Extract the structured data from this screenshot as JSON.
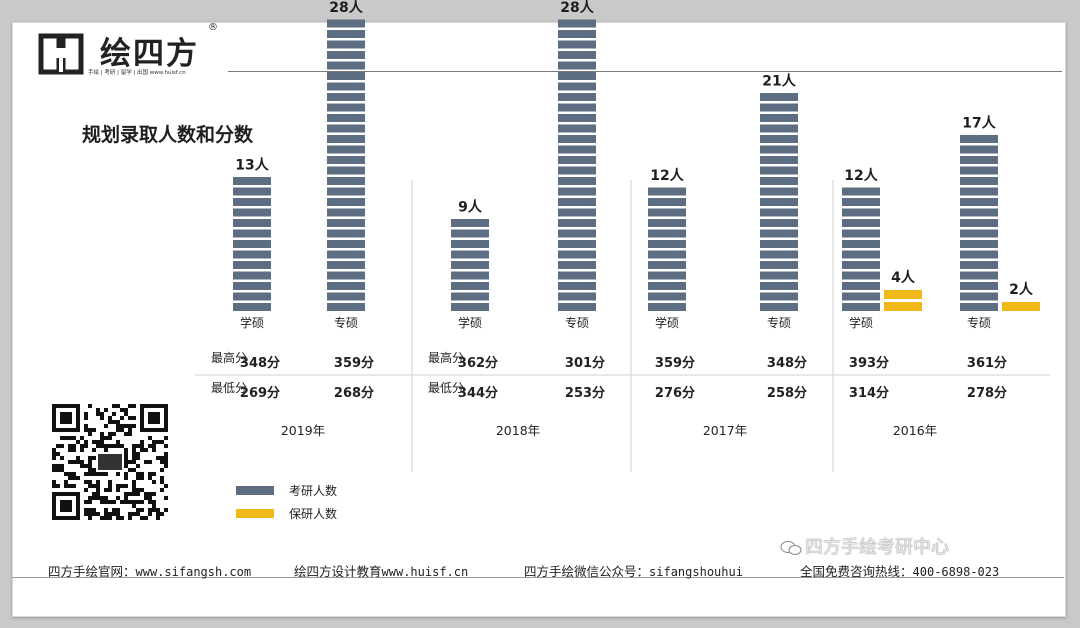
{
  "header": {
    "brand": "绘四方",
    "registered": "®",
    "tagline": "手绘 | 考研 | 留学 | 出国  www.huisf.cn"
  },
  "chart_data": {
    "type": "bar",
    "title": "规划录取人数和分数",
    "legend": [
      {
        "name": "考研人数",
        "color": "#5d6e82"
      },
      {
        "name": "保研人数",
        "color": "#f0b818"
      }
    ],
    "row_labels": {
      "max": "最高分",
      "min": "最低分"
    },
    "groups": [
      {
        "year": "2019年",
        "categories": [
          {
            "name": "学硕",
            "kaoyan": 13,
            "label": "13人",
            "max_score": "348分",
            "min_score": "269分"
          },
          {
            "name": "专硕",
            "kaoyan": 28,
            "label": "28人",
            "max_score": "359分",
            "min_score": "268分"
          }
        ]
      },
      {
        "year": "2018年",
        "categories": [
          {
            "name": "学硕",
            "kaoyan": 9,
            "label": "9人",
            "max_score": "362分",
            "min_score": "344分"
          },
          {
            "name": "专硕",
            "kaoyan": 28,
            "label": "28人",
            "max_score": "301分",
            "min_score": "253分"
          }
        ]
      },
      {
        "year": "2017年",
        "categories": [
          {
            "name": "学硕",
            "kaoyan": 12,
            "label": "12人",
            "max_score": "359分",
            "min_score": "276分"
          },
          {
            "name": "专硕",
            "kaoyan": 21,
            "label": "21人",
            "max_score": "348分",
            "min_score": "258分"
          }
        ]
      },
      {
        "year": "2016年",
        "categories": [
          {
            "name": "学硕",
            "kaoyan": 12,
            "label": "12人",
            "baoyan": 4,
            "baoyan_label": "4人",
            "max_score": "393分",
            "min_score": "314分"
          },
          {
            "name": "专硕",
            "kaoyan": 17,
            "label": "17人",
            "baoyan": 2,
            "baoyan_label": "2人",
            "max_score": "361分",
            "min_score": "278分"
          }
        ]
      }
    ]
  },
  "watermark": "四方手绘考研中心",
  "footer": {
    "site_label": "四方手绘官网：",
    "site_url": "www.sifangsh.com",
    "edu_label": "绘四方设计教育",
    "edu_url": "www.huisf.cn",
    "wechat_label": "四方手绘微信公众号：",
    "wechat_id": "sifangshouhui",
    "hotline_label": "全国免费咨询热线：",
    "hotline": "400-6898-023"
  },
  "colors": {
    "kaoyan": "#5d6e82",
    "baoyan": "#f0b818",
    "grid": "#cfcfcf"
  }
}
